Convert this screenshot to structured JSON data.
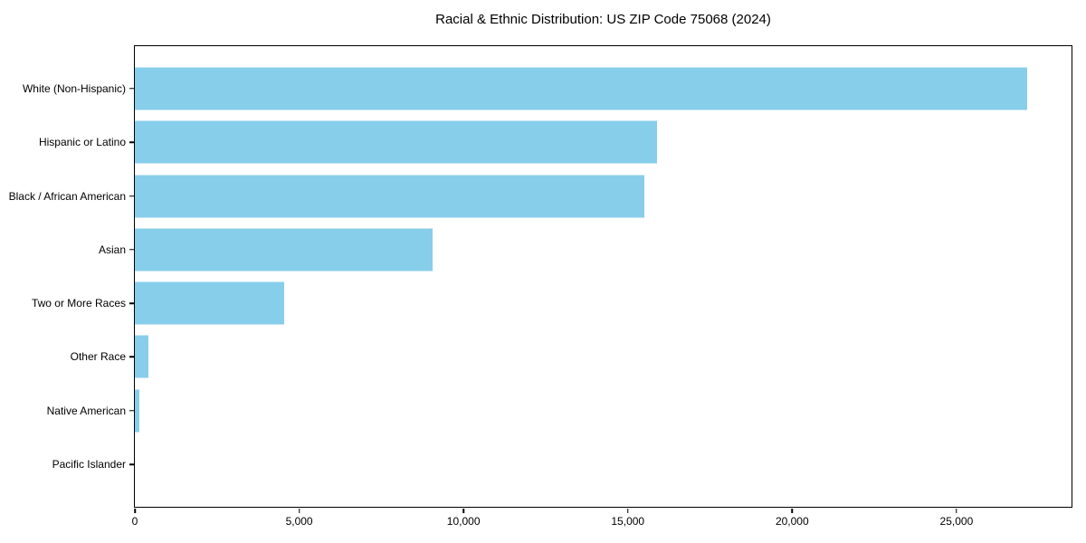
{
  "figure": {
    "background": "#ffffff"
  },
  "chart_data": {
    "type": "bar",
    "orientation": "horizontal",
    "title": "Racial & Ethnic Distribution: US ZIP Code 75068 (2024)",
    "categories": [
      "White (Non-Hispanic)",
      "Hispanic or Latino",
      "Black / African American",
      "Asian",
      "Two or More Races",
      "Other Race",
      "Native American",
      "Pacific Islander"
    ],
    "values": [
      27150,
      15900,
      15500,
      9050,
      4550,
      400,
      150,
      0
    ],
    "xlabel": "",
    "ylabel": "",
    "xlim": [
      0,
      28500
    ],
    "x_ticks": [
      0,
      5000,
      10000,
      15000,
      20000,
      25000
    ],
    "x_tick_labels": [
      "0",
      "5,000",
      "10,000",
      "15,000",
      "20,000",
      "25,000"
    ],
    "grid": false,
    "legend": null,
    "bar_color": "#87CEEB",
    "axis_color": "#000000",
    "text_color": "#000000"
  }
}
